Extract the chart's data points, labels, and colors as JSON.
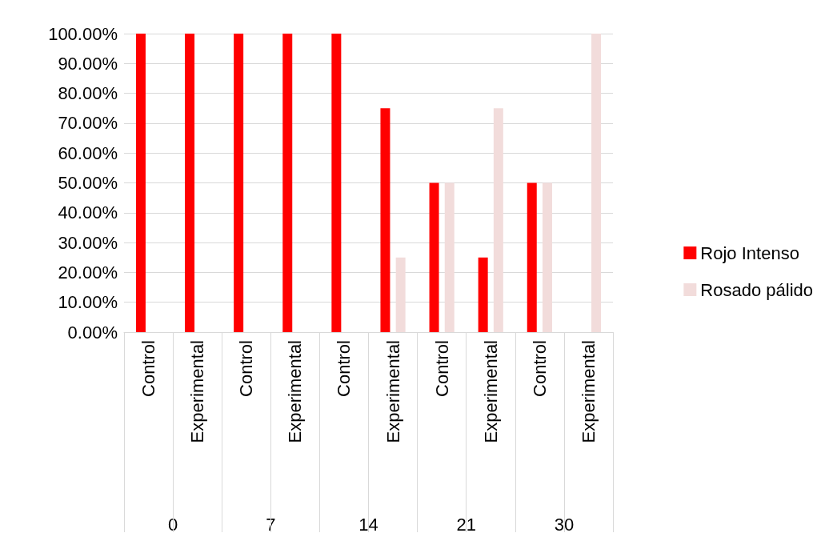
{
  "chart_data": {
    "type": "bar",
    "categories": [
      "Control",
      "Experimental",
      "Control",
      "Experimental",
      "Control",
      "Experimental",
      "Control",
      "Experimental",
      "Control",
      "Experimental"
    ],
    "series": [
      {
        "name": "Rojo Intenso",
        "color": "#ff0000",
        "values": [
          100,
          100,
          100,
          100,
          100,
          75,
          50,
          25,
          50,
          0
        ]
      },
      {
        "name": "Rosado pálido",
        "color": "#f2dcdb",
        "values": [
          0,
          0,
          0,
          0,
          0,
          25,
          50,
          75,
          50,
          100
        ]
      }
    ],
    "ylim": [
      0,
      100
    ],
    "yticks": [
      {
        "value": 0,
        "label": "0.00%"
      },
      {
        "value": 10,
        "label": "10.00%"
      },
      {
        "value": 20,
        "label": "20.00%"
      },
      {
        "value": 30,
        "label": "30.00%"
      },
      {
        "value": 40,
        "label": "40.00%"
      },
      {
        "value": 50,
        "label": "50.00%"
      },
      {
        "value": 60,
        "label": "60.00%"
      },
      {
        "value": 70,
        "label": "70.00%"
      },
      {
        "value": 80,
        "label": "80.00%"
      },
      {
        "value": 90,
        "label": "90.00%"
      },
      {
        "value": 100,
        "label": "100.00%"
      }
    ],
    "annotations": [
      "0",
      "7",
      "14",
      "21",
      "30"
    ],
    "grid": "y",
    "legend": "right"
  }
}
